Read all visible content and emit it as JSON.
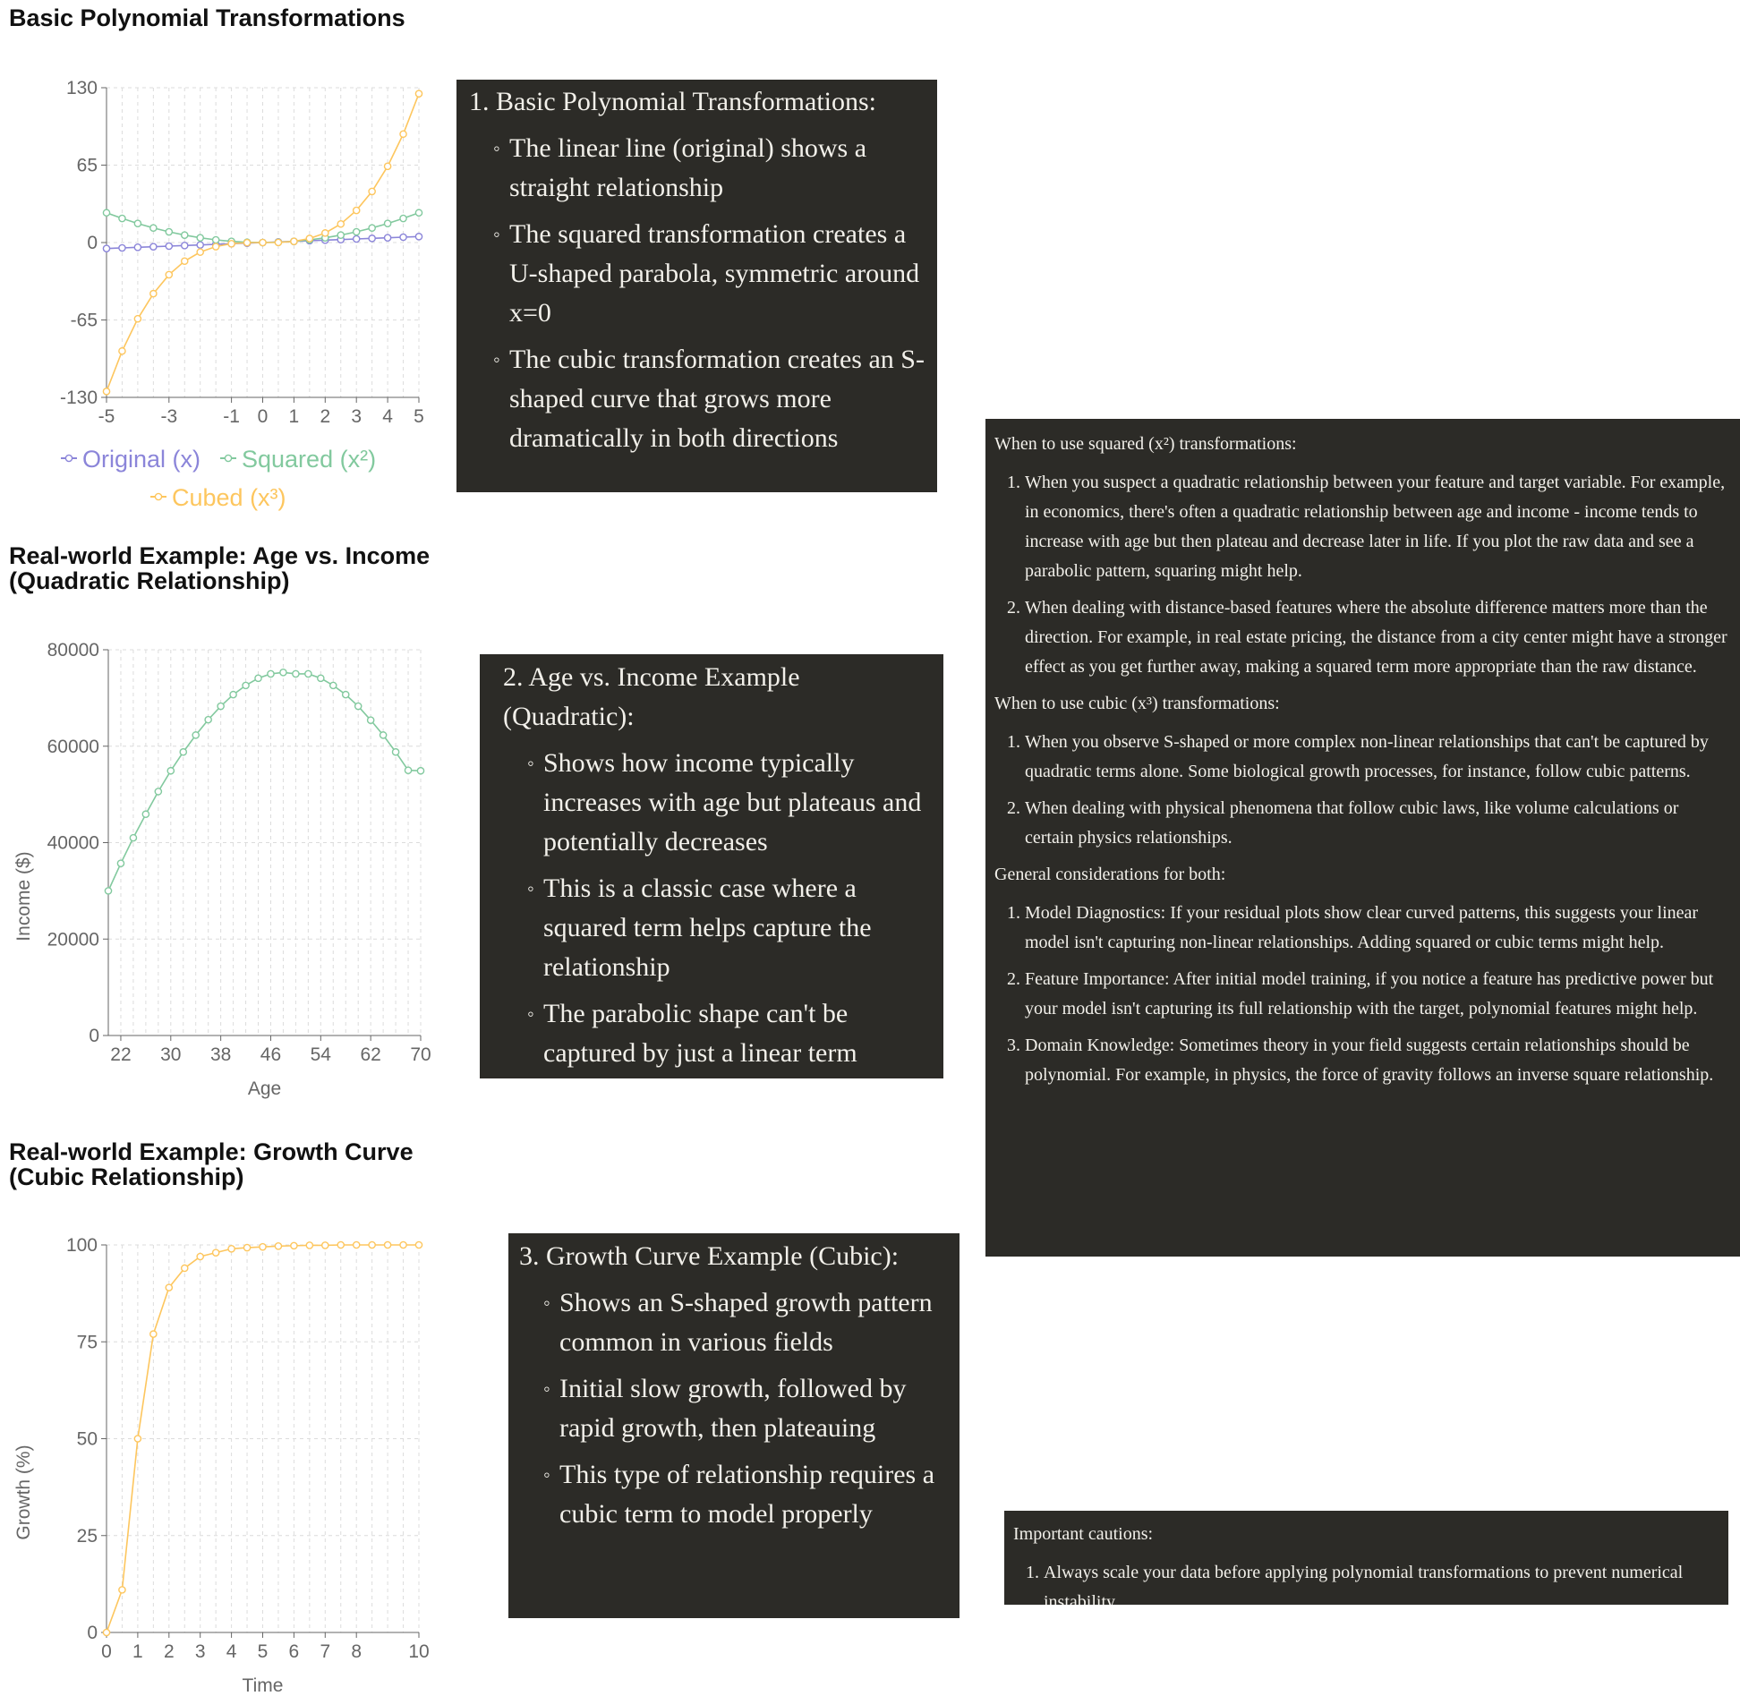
{
  "charts_meta": {
    "title1": "Basic Polynomial Transformations",
    "title2": "Real-world Example: Age vs. Income\n(Quadratic Relationship)",
    "title3": "Real-world Example: Growth Curve\n(Cubic Relationship)"
  },
  "chart_data": [
    {
      "type": "line",
      "title": "Basic Polynomial Transformations",
      "xlabel": "",
      "ylabel": "",
      "x": [
        -5,
        -4.5,
        -4,
        -3.5,
        -3,
        -2.5,
        -2,
        -1.5,
        -1,
        -0.5,
        0,
        0.5,
        1,
        1.5,
        2,
        2.5,
        3,
        3.5,
        4,
        4.5,
        5
      ],
      "xticks": [
        "-5",
        "-3",
        "-1",
        "0",
        "1",
        "2",
        "3",
        "4",
        "5"
      ],
      "xtick_values": [
        -5,
        -3,
        -1,
        0,
        1,
        2,
        3,
        4,
        5
      ],
      "yticks": [
        "130",
        "65",
        "0",
        "-65",
        "-130"
      ],
      "ytick_values": [
        130,
        65,
        0,
        -65,
        -130
      ],
      "ylim": [
        -130,
        130
      ],
      "xlim": [
        -5,
        5
      ],
      "grid": true,
      "legend_position": "bottom",
      "series": [
        {
          "name": "Original (x)",
          "color": "#8b85d9",
          "values": [
            -5,
            -4.5,
            -4,
            -3.5,
            -3,
            -2.5,
            -2,
            -1.5,
            -1,
            -0.5,
            0,
            0.5,
            1,
            1.5,
            2,
            2.5,
            3,
            3.5,
            4,
            4.5,
            5
          ]
        },
        {
          "name": "Squared (x²)",
          "color": "#82c99e",
          "values": [
            25,
            20.25,
            16,
            12.25,
            9,
            6.25,
            4,
            2.25,
            1,
            0.25,
            0,
            0.25,
            1,
            2.25,
            4,
            6.25,
            9,
            12.25,
            16,
            20.25,
            25
          ]
        },
        {
          "name": "Cubed (x³)",
          "color": "#fdc65e",
          "values": [
            -125,
            -91.1,
            -64,
            -42.9,
            -27,
            -15.6,
            -8,
            -3.4,
            -1,
            -0.1,
            0,
            0.1,
            1,
            3.4,
            8,
            15.6,
            27,
            42.9,
            64,
            91.1,
            125
          ]
        }
      ]
    },
    {
      "type": "line",
      "title": "Real-world Example: Age vs. Income (Quadratic Relationship)",
      "xlabel": "Age",
      "ylabel": "Income ($)",
      "x": [
        20,
        22,
        24,
        26,
        28,
        30,
        32,
        34,
        36,
        38,
        40,
        42,
        44,
        46,
        48,
        50,
        52,
        54,
        56,
        58,
        60,
        62,
        64,
        66,
        68,
        70
      ],
      "xticks": [
        "22",
        "30",
        "38",
        "46",
        "54",
        "62",
        "70"
      ],
      "xtick_values": [
        22,
        30,
        38,
        46,
        54,
        62,
        70
      ],
      "yticks": [
        "80000",
        "60000",
        "40000",
        "20000",
        "0"
      ],
      "ytick_values": [
        80000,
        60000,
        40000,
        20000,
        0
      ],
      "ylim": [
        0,
        80000
      ],
      "xlim": [
        20,
        70
      ],
      "grid": true,
      "series": [
        {
          "name": "",
          "color": "#82c99e",
          "values": [
            30000,
            35700,
            41000,
            45900,
            50600,
            54900,
            58800,
            62300,
            65500,
            68300,
            70700,
            72600,
            74100,
            75000,
            75300,
            75000,
            75000,
            74100,
            72600,
            70700,
            68300,
            65400,
            62300,
            58800,
            55000,
            54900
          ]
        }
      ]
    },
    {
      "type": "line",
      "title": "Real-world Example: Growth Curve (Cubic Relationship)",
      "xlabel": "Time",
      "ylabel": "Growth (%)",
      "x": [
        0,
        0.5,
        1,
        1.5,
        2,
        2.5,
        3,
        3.5,
        4,
        4.5,
        5,
        5.5,
        6,
        6.5,
        7,
        7.5,
        8,
        8.5,
        9,
        9.5,
        10
      ],
      "xticks": [
        "0",
        "1",
        "2",
        "3",
        "4",
        "5",
        "6",
        "7",
        "8",
        "10"
      ],
      "xtick_values": [
        0,
        1,
        2,
        3,
        4,
        5,
        6,
        7,
        8,
        10
      ],
      "yticks": [
        "100",
        "75",
        "50",
        "25",
        "0"
      ],
      "ytick_values": [
        100,
        75,
        50,
        25,
        0
      ],
      "ylim": [
        0,
        100
      ],
      "xlim": [
        0,
        10
      ],
      "grid": true,
      "series": [
        {
          "name": "",
          "color": "#fdc65e",
          "values": [
            0,
            11,
            50,
            77,
            89,
            94,
            97,
            98,
            99,
            99.3,
            99.5,
            99.7,
            99.8,
            99.9,
            99.9,
            100,
            100,
            100,
            100,
            100,
            100
          ]
        }
      ]
    }
  ],
  "box1": {
    "head": "1. Basic Polynomial Transformations:",
    "items": [
      "The linear line (original) shows a straight relationship",
      "The squared transformation creates a U-shaped parabola, symmetric around x=0",
      "The cubic transformation creates an S-shaped curve that grows more dramatically in both directions"
    ]
  },
  "box2": {
    "head": "2. Age vs. Income Example (Quadratic):",
    "items": [
      "Shows how income typically increases with age but plateaus and potentially decreases",
      "This is a classic case where a squared term helps capture the relationship",
      "The parabolic shape can't be captured by just a linear term"
    ]
  },
  "box3": {
    "head": "3. Growth Curve Example (Cubic):",
    "items": [
      "Shows an S-shaped growth pattern common in various fields",
      "Initial slow growth, followed by rapid growth, then plateauing",
      "This type of relationship requires a cubic term to model properly"
    ]
  },
  "guide": {
    "squared_title": "When to use squared (x²) transformations:",
    "squared_items": [
      "When you suspect a quadratic relationship between your feature and target variable. For example, in economics, there's often a quadratic relationship between age and income - income tends to increase with age but then plateau and decrease later in life. If you plot the raw data and see a parabolic pattern, squaring might help.",
      "When dealing with distance-based features where the absolute difference matters more than the direction. For example, in real estate pricing, the distance from a city center might have a stronger effect as you get further away, making a squared term more appropriate than the raw distance."
    ],
    "cubic_title": "When to use cubic (x³) transformations:",
    "cubic_items": [
      "When you observe S-shaped or more complex non-linear relationships that can't be captured by quadratic terms alone. Some biological growth processes, for instance, follow cubic patterns.",
      "When dealing with physical phenomena that follow cubic laws, like volume calculations or certain physics relationships."
    ],
    "general_title": "General considerations for both:",
    "general_items": [
      "Model Diagnostics: If your residual plots show clear curved patterns, this suggests your linear model isn't capturing non-linear relationships. Adding squared or cubic terms might help.",
      "Feature Importance: After initial model training, if you notice a feature has predictive power but your model isn't capturing its full relationship with the target, polynomial features might help.",
      "Domain Knowledge: Sometimes theory in your field suggests certain relationships should be polynomial. For example, in physics, the force of gravity follows an inverse square relationship."
    ]
  },
  "cautions": {
    "title": "Important cautions:",
    "items": [
      "Always scale your data before applying polynomial transformations to prevent numerical instability."
    ]
  }
}
